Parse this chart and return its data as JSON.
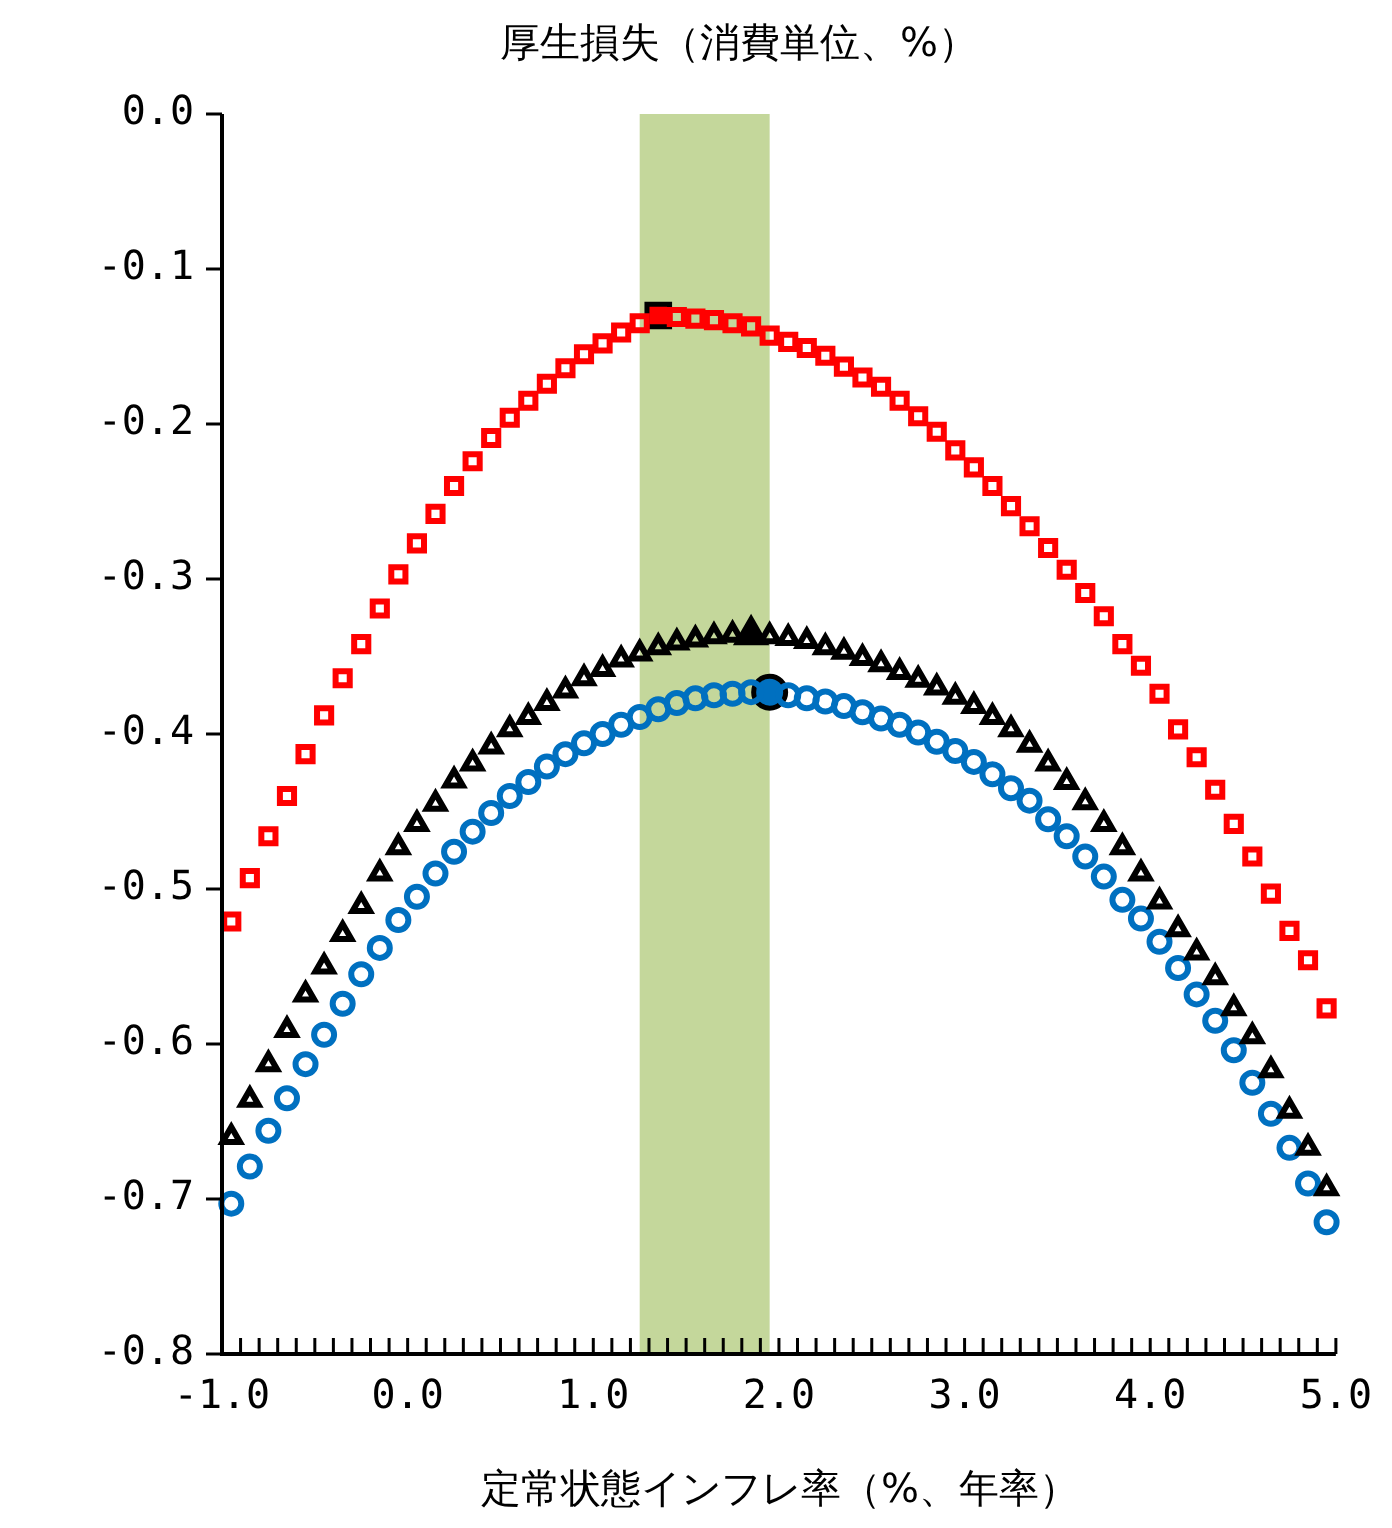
{
  "chart_data": {
    "type": "scatter",
    "title": "厚生損失（消費単位、%）",
    "xlabel": "定常状態インフレ率（%、年率）",
    "x": [
      -0.95,
      -0.85,
      -0.75,
      -0.65,
      -0.55,
      -0.45,
      -0.35,
      -0.25,
      -0.15,
      -0.05,
      0.05,
      0.15,
      0.25,
      0.35,
      0.45,
      0.55,
      0.65,
      0.75,
      0.85,
      0.95,
      1.05,
      1.15,
      1.25,
      1.35,
      1.45,
      1.55,
      1.65,
      1.75,
      1.85,
      1.95,
      2.05,
      2.15,
      2.25,
      2.35,
      2.45,
      2.55,
      2.65,
      2.75,
      2.85,
      2.95,
      3.05,
      3.15,
      3.25,
      3.35,
      3.45,
      3.55,
      3.65,
      3.75,
      3.85,
      3.95,
      4.05,
      4.15,
      4.25,
      4.35,
      4.45,
      4.55,
      4.65,
      4.75,
      4.85,
      4.95
    ],
    "xlim": [
      -1,
      5
    ],
    "xticks": [
      {
        "value": -1,
        "label": "-1.0"
      },
      {
        "value": -0.9,
        "label": null
      },
      {
        "value": -0.8,
        "label": null
      },
      {
        "value": -0.7,
        "label": null
      },
      {
        "value": -0.6,
        "label": null
      },
      {
        "value": -0.5,
        "label": null
      },
      {
        "value": -0.4,
        "label": null
      },
      {
        "value": -0.3,
        "label": null
      },
      {
        "value": -0.2,
        "label": null
      },
      {
        "value": -0.1,
        "label": null
      },
      {
        "value": 0,
        "label": "0.0"
      },
      {
        "value": 0.1,
        "label": null
      },
      {
        "value": 0.2,
        "label": null
      },
      {
        "value": 0.3,
        "label": null
      },
      {
        "value": 0.4,
        "label": null
      },
      {
        "value": 0.5,
        "label": null
      },
      {
        "value": 0.6,
        "label": null
      },
      {
        "value": 0.7,
        "label": null
      },
      {
        "value": 0.8,
        "label": null
      },
      {
        "value": 0.9,
        "label": null
      },
      {
        "value": 1,
        "label": "1.0"
      },
      {
        "value": 1.1,
        "label": null
      },
      {
        "value": 1.2,
        "label": null
      },
      {
        "value": 1.3,
        "label": null
      },
      {
        "value": 1.4,
        "label": null
      },
      {
        "value": 1.5,
        "label": null
      },
      {
        "value": 1.6,
        "label": null
      },
      {
        "value": 1.7,
        "label": null
      },
      {
        "value": 1.8,
        "label": null
      },
      {
        "value": 1.9,
        "label": null
      },
      {
        "value": 2,
        "label": "2.0"
      },
      {
        "value": 2.1,
        "label": null
      },
      {
        "value": 2.2,
        "label": null
      },
      {
        "value": 2.3,
        "label": null
      },
      {
        "value": 2.4,
        "label": null
      },
      {
        "value": 2.5,
        "label": null
      },
      {
        "value": 2.6,
        "label": null
      },
      {
        "value": 2.7,
        "label": null
      },
      {
        "value": 2.8,
        "label": null
      },
      {
        "value": 2.9,
        "label": null
      },
      {
        "value": 3,
        "label": "3.0"
      },
      {
        "value": 3.1,
        "label": null
      },
      {
        "value": 3.2,
        "label": null
      },
      {
        "value": 3.3,
        "label": null
      },
      {
        "value": 3.4,
        "label": null
      },
      {
        "value": 3.5,
        "label": null
      },
      {
        "value": 3.6,
        "label": null
      },
      {
        "value": 3.7,
        "label": null
      },
      {
        "value": 3.8,
        "label": null
      },
      {
        "value": 3.9,
        "label": null
      },
      {
        "value": 4,
        "label": "4.0"
      },
      {
        "value": 4.1,
        "label": null
      },
      {
        "value": 4.2,
        "label": null
      },
      {
        "value": 4.3,
        "label": null
      },
      {
        "value": 4.4,
        "label": null
      },
      {
        "value": 4.5,
        "label": null
      },
      {
        "value": 4.6,
        "label": null
      },
      {
        "value": 4.7,
        "label": null
      },
      {
        "value": 4.8,
        "label": null
      },
      {
        "value": 4.9,
        "label": null
      },
      {
        "value": 5,
        "label": "5.0"
      }
    ],
    "ylim": [
      -0.8,
      0
    ],
    "yticks": [
      -0.8,
      -0.7,
      -0.6,
      -0.5,
      -0.4,
      -0.3,
      -0.2,
      -0.1,
      {
        "value": 0,
        "label": "0.0"
      }
    ],
    "bands": [
      {
        "axis": "x",
        "from": 1.25,
        "to": 1.95,
        "color": "#c4d79b"
      }
    ],
    "series": [
      {
        "marker": "square",
        "color": "#ff0000",
        "values": [
          -0.521,
          -0.493,
          -0.466,
          -0.44,
          -0.413,
          -0.388,
          -0.364,
          -0.342,
          -0.319,
          -0.297,
          -0.277,
          -0.258,
          -0.24,
          -0.224,
          -0.209,
          -0.196,
          -0.185,
          -0.174,
          -0.164,
          -0.155,
          -0.148,
          -0.141,
          -0.135,
          null,
          -0.131,
          -0.132,
          -0.133,
          -0.135,
          -0.137,
          -0.143,
          -0.147,
          -0.151,
          -0.156,
          -0.163,
          -0.17,
          -0.176,
          -0.185,
          -0.195,
          -0.205,
          -0.217,
          -0.228,
          -0.24,
          -0.253,
          -0.266,
          -0.28,
          -0.294,
          -0.309,
          -0.324,
          -0.342,
          -0.356,
          -0.374,
          -0.397,
          -0.415,
          -0.436,
          -0.458,
          -0.479,
          -0.503,
          -0.527,
          -0.546,
          -0.577
        ]
      },
      {
        "marker": "triangle",
        "color": "#000000",
        "values": [
          -0.66,
          -0.636,
          -0.613,
          -0.591,
          -0.568,
          -0.55,
          -0.529,
          -0.511,
          -0.49,
          -0.473,
          -0.458,
          -0.445,
          -0.43,
          -0.419,
          -0.408,
          -0.397,
          -0.389,
          -0.38,
          -0.372,
          -0.364,
          -0.358,
          -0.352,
          -0.348,
          -0.344,
          -0.341,
          -0.339,
          -0.337,
          -0.336,
          null,
          -0.337,
          -0.338,
          -0.34,
          -0.344,
          -0.347,
          -0.351,
          -0.355,
          -0.36,
          -0.365,
          -0.37,
          -0.376,
          -0.382,
          -0.389,
          -0.397,
          -0.407,
          -0.419,
          -0.431,
          -0.444,
          -0.458,
          -0.473,
          -0.49,
          -0.508,
          -0.526,
          -0.541,
          -0.557,
          -0.577,
          -0.595,
          -0.617,
          -0.643,
          -0.667,
          -0.693
        ]
      },
      {
        "marker": "circle",
        "color": "#0070c0",
        "values": [
          -0.703,
          -0.679,
          -0.656,
          -0.635,
          -0.613,
          -0.594,
          -0.574,
          -0.555,
          -0.538,
          -0.52,
          -0.505,
          -0.49,
          -0.476,
          -0.463,
          -0.451,
          -0.44,
          -0.431,
          -0.421,
          -0.413,
          -0.406,
          -0.4,
          -0.394,
          -0.389,
          -0.384,
          -0.38,
          -0.377,
          -0.375,
          -0.374,
          -0.373,
          null,
          -0.375,
          -0.377,
          -0.379,
          -0.382,
          -0.386,
          -0.39,
          -0.394,
          -0.399,
          -0.405,
          -0.411,
          -0.418,
          -0.426,
          -0.435,
          -0.443,
          -0.455,
          -0.466,
          -0.479,
          -0.492,
          -0.507,
          -0.519,
          -0.534,
          -0.551,
          -0.568,
          -0.585,
          -0.604,
          -0.625,
          -0.645,
          -0.667,
          -0.69,
          -0.715
        ]
      },
      {
        "marker": "square",
        "color": "#ff0000",
        "x": [
          1.35
        ],
        "values": [
          -0.13
        ]
      },
      {
        "marker": "triangle",
        "color": "#000000",
        "x": [
          1.85
        ],
        "values": [
          -0.336
        ]
      },
      {
        "marker": "circle",
        "color": "#0070c0",
        "x": [
          1.95
        ],
        "values": [
          -0.373
        ]
      }
    ]
  }
}
